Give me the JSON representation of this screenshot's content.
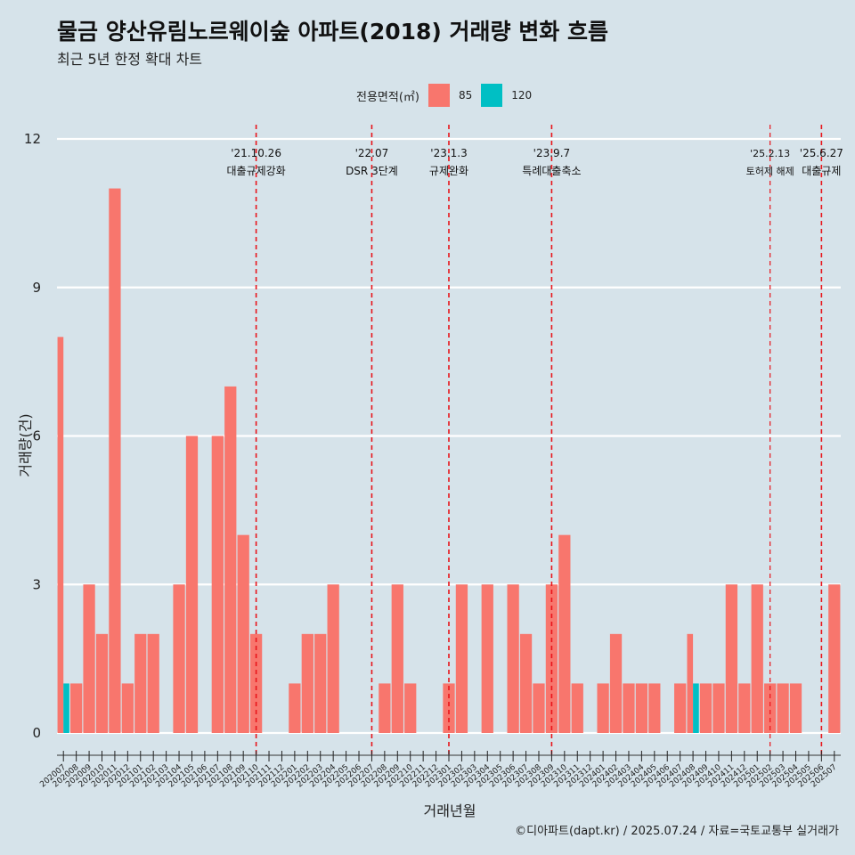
{
  "header": {
    "title": "물금 양산유림노르웨이숲 아파트(2018) 거래량 변화 흐름",
    "subtitle": "최근 5년 한정 확대 차트"
  },
  "legend": {
    "title": "전용면적(㎡)",
    "items": [
      {
        "label": "85",
        "color": "#f8766d"
      },
      {
        "label": "120",
        "color": "#00bfc4"
      }
    ]
  },
  "caption": "©디아파트(dapt.kr) / 2025.07.24 / 자료=국토교통부 실거래가",
  "chart_data": {
    "type": "bar",
    "xlabel": "거래년월",
    "ylabel": "거래량(건)",
    "ylim": [
      0,
      12
    ],
    "yticks": [
      0,
      3,
      6,
      9,
      12
    ],
    "grid": true,
    "legend_position": "top",
    "categories": [
      "202007",
      "202008",
      "202009",
      "202010",
      "202011",
      "202012",
      "202101",
      "202102",
      "202103",
      "202104",
      "202105",
      "202106",
      "202107",
      "202108",
      "202109",
      "202110",
      "202111",
      "202112",
      "202201",
      "202202",
      "202203",
      "202204",
      "202205",
      "202206",
      "202207",
      "202208",
      "202209",
      "202210",
      "202211",
      "202212",
      "202301",
      "202302",
      "202303",
      "202304",
      "202305",
      "202306",
      "202307",
      "202308",
      "202309",
      "202310",
      "202311",
      "202312",
      "202401",
      "202402",
      "202403",
      "202404",
      "202405",
      "202406",
      "202407",
      "202408",
      "202409",
      "202410",
      "202411",
      "202412",
      "202501",
      "202502",
      "202503",
      "202504",
      "202505",
      "202506",
      "202507"
    ],
    "series": [
      {
        "name": "85",
        "color": "#f8766d",
        "values": [
          8,
          1,
          3,
          2,
          11,
          1,
          2,
          2,
          0,
          3,
          6,
          0,
          6,
          7,
          4,
          2,
          0,
          0,
          1,
          2,
          2,
          3,
          0,
          0,
          0,
          1,
          3,
          1,
          0,
          0,
          1,
          3,
          0,
          3,
          0,
          3,
          2,
          1,
          3,
          4,
          1,
          0,
          1,
          2,
          1,
          1,
          1,
          0,
          1,
          2,
          1,
          1,
          3,
          1,
          3,
          1,
          1,
          1,
          0,
          0,
          3
        ]
      },
      {
        "name": "120",
        "color": "#00bfc4",
        "values": [
          1,
          0,
          0,
          0,
          0,
          0,
          0,
          0,
          0,
          0,
          0,
          0,
          0,
          0,
          0,
          0,
          0,
          0,
          0,
          0,
          0,
          0,
          0,
          0,
          0,
          0,
          0,
          0,
          0,
          0,
          0,
          0,
          0,
          0,
          0,
          0,
          0,
          0,
          0,
          0,
          0,
          0,
          0,
          0,
          0,
          0,
          0,
          0,
          0,
          1,
          0,
          0,
          0,
          0,
          0,
          0,
          0,
          0,
          0,
          0,
          0
        ]
      }
    ],
    "events": [
      {
        "date": "'21.10.26",
        "label": "대출규제강화",
        "x": "202110",
        "style": "major"
      },
      {
        "date": "'22.07",
        "label": "DSR 3단계",
        "x": "202207",
        "style": "major"
      },
      {
        "date": "'23.1.3",
        "label": "규제완화",
        "x": "202301",
        "style": "major"
      },
      {
        "date": "'23.9.7",
        "label": "특례대출축소",
        "x": "202309",
        "style": "major"
      },
      {
        "date": "'25.2.13",
        "label": "토허제 해제",
        "x": "202502",
        "style": "minor"
      },
      {
        "date": "'25.6.27",
        "label": "대출규제",
        "x": "202506",
        "style": "major"
      }
    ]
  }
}
